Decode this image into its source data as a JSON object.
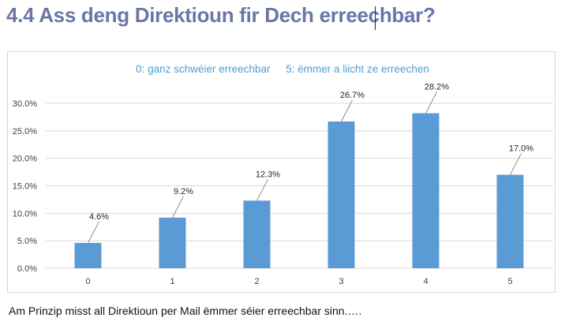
{
  "page": {
    "heading": "4.4 Ass deng Direktioun fir Dech erreechbar?",
    "footer": "Am Prinzip misst all Direktioun per Mail ëmmer séier erreechbar sinn.…."
  },
  "chart_data": {
    "type": "bar",
    "subtitle_left": "0: ganz schwéier erreechbar",
    "subtitle_right": "5: ëmmer a liicht ze erreechen",
    "categories": [
      "0",
      "1",
      "2",
      "3",
      "4",
      "5"
    ],
    "values": [
      4.6,
      9.2,
      12.3,
      26.7,
      28.2,
      17.0
    ],
    "data_labels": [
      "4.6%",
      "9.2%",
      "12.3%",
      "26.7%",
      "28.2%",
      "17.0%"
    ],
    "ylim": [
      0,
      30
    ],
    "yticks": [
      "0.0%",
      "5.0%",
      "10.0%",
      "15.0%",
      "20.0%",
      "25.0%",
      "30.0%"
    ],
    "grid": true,
    "bar_color": "#5b9bd5",
    "grid_color": "#d9d9d9"
  }
}
